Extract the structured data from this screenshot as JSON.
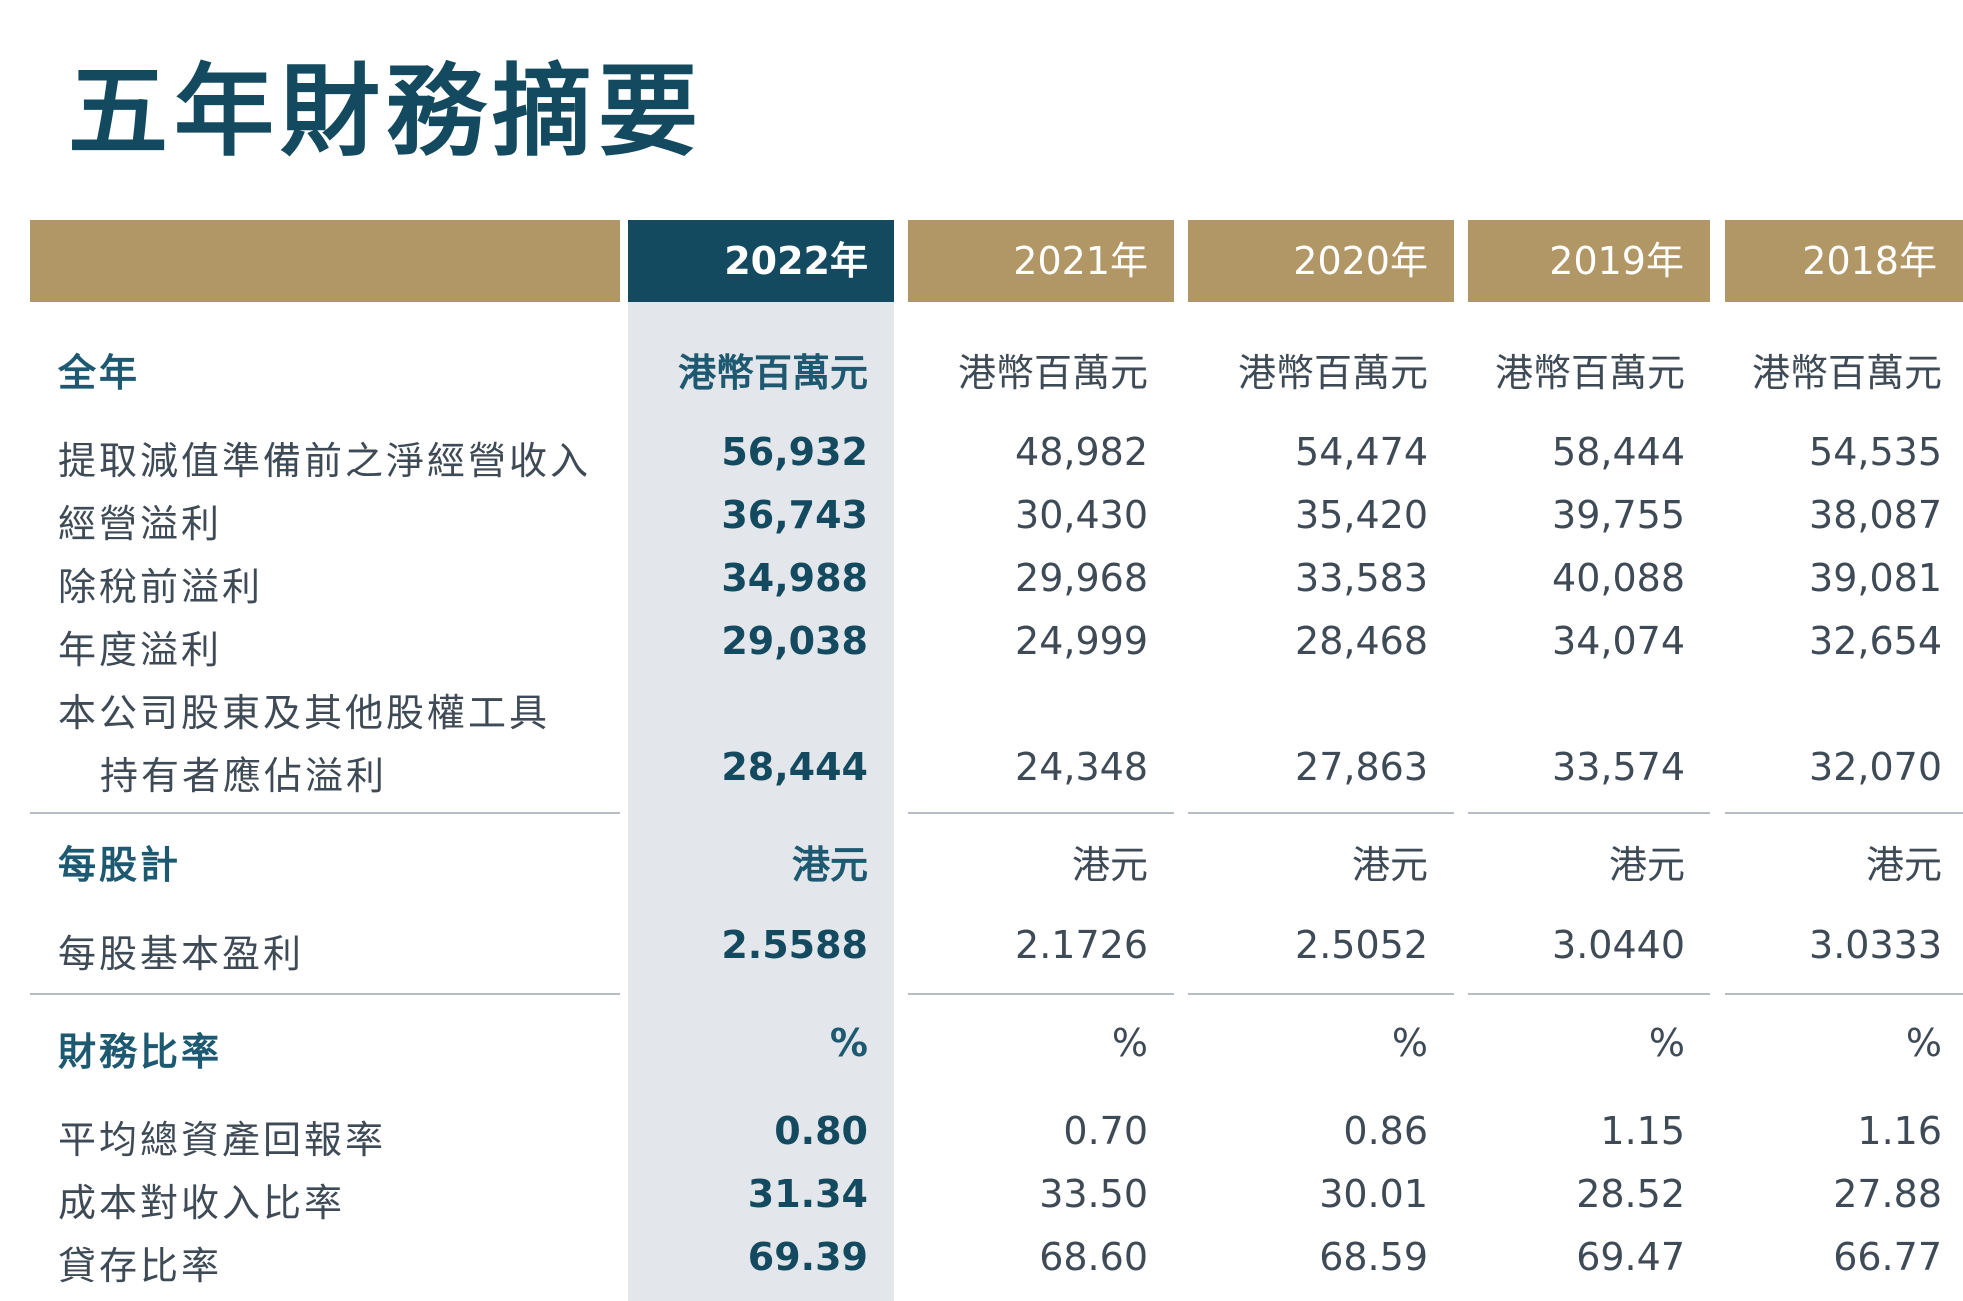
{
  "title": "五年財務摘要",
  "years": [
    "2022年",
    "2021年",
    "2020年",
    "2019年",
    "2018年"
  ],
  "sections": [
    {
      "heading": "全年",
      "units": [
        "港幣百萬元",
        "港幣百萬元",
        "港幣百萬元",
        "港幣百萬元",
        "港幣百萬元"
      ],
      "rows": [
        {
          "label": "提取減值準備前之淨經營收入",
          "values": [
            "56,932",
            "48,982",
            "54,474",
            "58,444",
            "54,535"
          ]
        },
        {
          "label": "經營溢利",
          "values": [
            "36,743",
            "30,430",
            "35,420",
            "39,755",
            "38,087"
          ]
        },
        {
          "label": "除稅前溢利",
          "values": [
            "34,988",
            "29,968",
            "33,583",
            "40,088",
            "39,081"
          ]
        },
        {
          "label": "年度溢利",
          "values": [
            "29,038",
            "24,999",
            "28,468",
            "34,074",
            "32,654"
          ]
        },
        {
          "label": "本公司股東及其他股權工具",
          "label2": "持有者應佔溢利",
          "values": [
            "28,444",
            "24,348",
            "27,863",
            "33,574",
            "32,070"
          ]
        }
      ]
    },
    {
      "heading": "每股計",
      "units": [
        "港元",
        "港元",
        "港元",
        "港元",
        "港元"
      ],
      "rows": [
        {
          "label": "每股基本盈利",
          "values": [
            "2.5588",
            "2.1726",
            "2.5052",
            "3.0440",
            "3.0333"
          ]
        }
      ]
    },
    {
      "heading": "財務比率",
      "units": [
        "%",
        "%",
        "%",
        "%",
        "%"
      ],
      "rows": [
        {
          "label": "平均總資產回報率",
          "values": [
            "0.80",
            "0.70",
            "0.86",
            "1.15",
            "1.16"
          ]
        },
        {
          "label": "成本對收入比率",
          "values": [
            "31.34",
            "33.50",
            "30.01",
            "28.52",
            "27.88"
          ]
        },
        {
          "label": "貸存比率",
          "values": [
            "69.39",
            "68.60",
            "68.59",
            "69.47",
            "66.77"
          ]
        }
      ]
    }
  ]
}
